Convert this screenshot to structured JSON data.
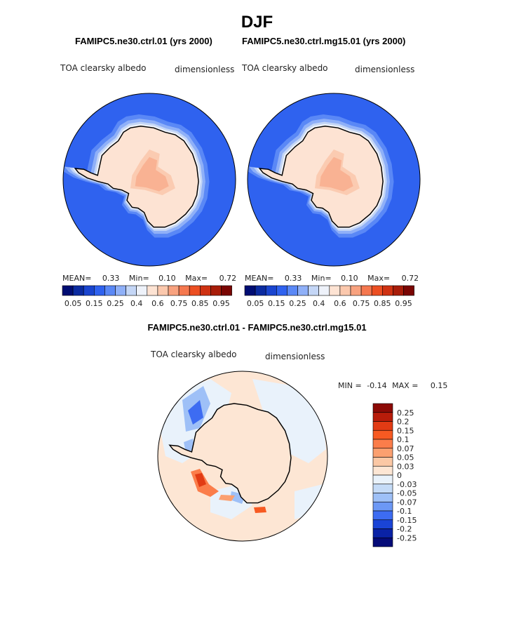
{
  "figure": {
    "title": "DJF",
    "left_case": "FAMIPC5.ne30.ctrl.01 (yrs 2000)",
    "right_case": "FAMIPC5.ne30.ctrl.mg15.01 (yrs 2000)",
    "diff_title": "FAMIPC5.ne30.ctrl.01 - FAMIPC5.ne30.ctrl.mg15.01"
  },
  "chart_data": [
    {
      "type": "heatmap",
      "projection": "polar stereographic (south)",
      "title": "FAMIPC5.ne30.ctrl.01 (yrs 2000)",
      "variable": "TOA clearsky albedo",
      "units": "dimensionless",
      "stats": {
        "mean_label": "MEAN=",
        "mean": "0.33",
        "min_label": "Min=",
        "min": "0.10",
        "max_label": "Max=",
        "max": "0.72"
      },
      "colorbar": {
        "orientation": "horizontal",
        "tick_labels": [
          "0.05",
          "0.15",
          "0.25",
          "0.4",
          "0.6",
          "0.75",
          "0.85",
          "0.95"
        ],
        "colors": [
          "#000d73",
          "#0b2ba0",
          "#1a45cf",
          "#2f62ef",
          "#5a88f6",
          "#8fb0f8",
          "#c4d6f6",
          "#eef2fa",
          "#fde3d3",
          "#fbc8ad",
          "#f8a27f",
          "#f5784f",
          "#ec4f22",
          "#cf3212",
          "#a81d0a",
          "#7a0603"
        ]
      }
    },
    {
      "type": "heatmap",
      "projection": "polar stereographic (south)",
      "title": "FAMIPC5.ne30.ctrl.mg15.01 (yrs 2000)",
      "variable": "TOA clearsky albedo",
      "units": "dimensionless",
      "stats": {
        "mean_label": "MEAN=",
        "mean": "0.33",
        "min_label": "Min=",
        "min": "0.10",
        "max_label": "Max=",
        "max": "0.72"
      },
      "colorbar": {
        "orientation": "horizontal",
        "tick_labels": [
          "0.05",
          "0.15",
          "0.25",
          "0.4",
          "0.6",
          "0.75",
          "0.85",
          "0.95"
        ],
        "colors": [
          "#000d73",
          "#0b2ba0",
          "#1a45cf",
          "#2f62ef",
          "#5a88f6",
          "#8fb0f8",
          "#c4d6f6",
          "#eef2fa",
          "#fde3d3",
          "#fbc8ad",
          "#f8a27f",
          "#f5784f",
          "#ec4f22",
          "#cf3212",
          "#a81d0a",
          "#7a0603"
        ]
      }
    },
    {
      "type": "heatmap",
      "projection": "polar stereographic (south)",
      "title": "FAMIPC5.ne30.ctrl.01 - FAMIPC5.ne30.ctrl.mg15.01",
      "variable": "TOA clearsky albedo",
      "units": "dimensionless",
      "stats": {
        "min_label": "MIN =",
        "min": "-0.14",
        "max_label": "MAX =",
        "max": "0.15"
      },
      "colorbar": {
        "orientation": "vertical",
        "tick_labels": [
          "0.25",
          "0.2",
          "0.15",
          "0.1",
          "0.07",
          "0.05",
          "0.03",
          "0",
          "-0.03",
          "-0.05",
          "-0.07",
          "-0.1",
          "-0.15",
          "-0.2",
          "-0.25"
        ],
        "colors": [
          "#8c0a06",
          "#b81c0a",
          "#e23b14",
          "#f75a22",
          "#fb7d4a",
          "#fba070",
          "#fbc8a5",
          "#fde6d4",
          "#e9f2fb",
          "#c5dbf7",
          "#9ec0f7",
          "#6c98f5",
          "#3d6cf2",
          "#1a44d6",
          "#0a22a6",
          "#050b78"
        ]
      }
    }
  ]
}
